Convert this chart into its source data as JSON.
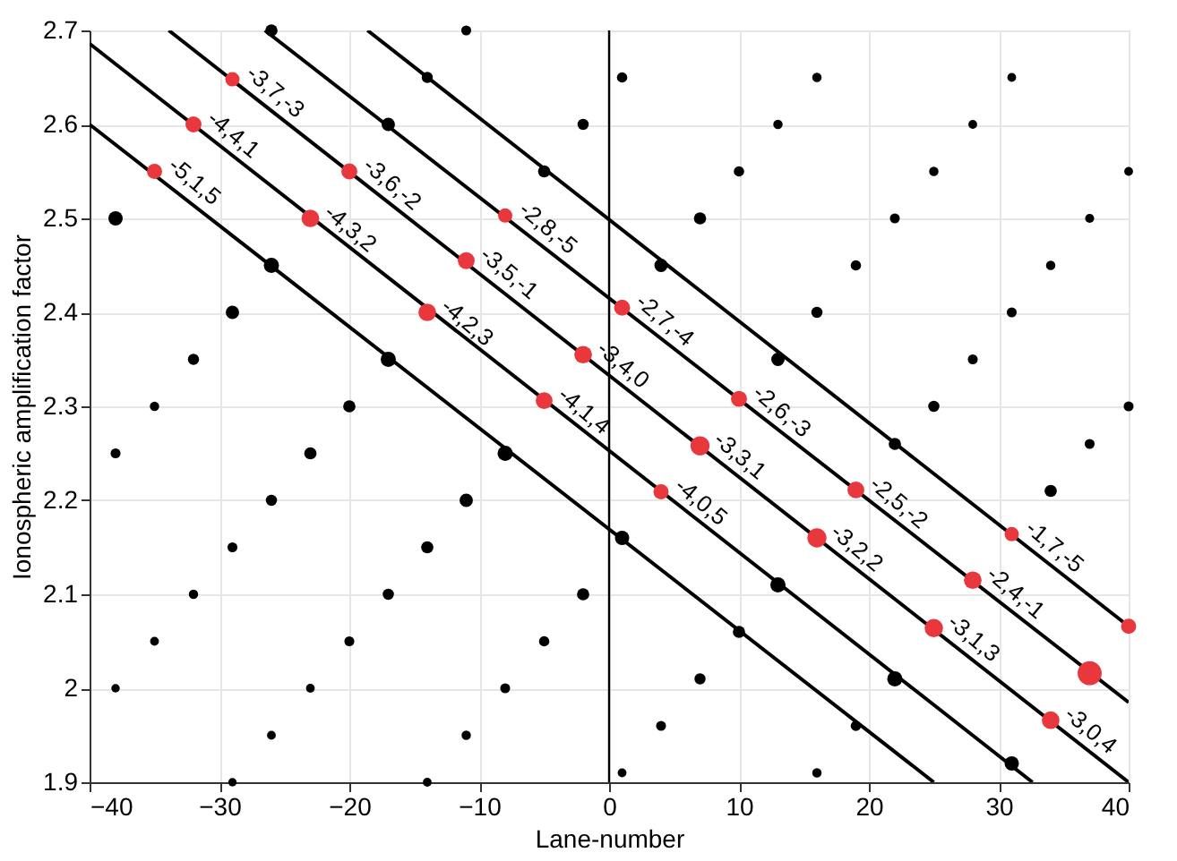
{
  "chart_data": {
    "type": "bubble",
    "xlabel": "Lane-number",
    "ylabel": "Ionospheric amplification factor",
    "xlim": [
      -40,
      40
    ],
    "xticks": [
      -40,
      -30,
      -20,
      -10,
      0,
      10,
      20,
      30,
      40
    ],
    "ylim": [
      1.9,
      2.7
    ],
    "yticks": [
      1.9,
      2,
      2.1,
      2.2,
      2.3,
      2.4,
      2.5,
      2.6,
      2.7
    ],
    "grid": true,
    "marker": "circle",
    "ref_lines": [
      {
        "axis": "x",
        "value": 0,
        "color": "#000000"
      }
    ],
    "series": [
      {
        "type": "line",
        "marker": "none",
        "color": "#000000",
        "x": [
          -18.6,
          40
        ],
        "values": [
          2.7,
          2.066
        ]
      },
      {
        "type": "line",
        "marker": "none",
        "color": "#000000",
        "x": [
          -26.5,
          40
        ],
        "values": [
          2.7,
          1.985
        ]
      },
      {
        "type": "line",
        "marker": "none",
        "color": "#000000",
        "x": [
          -33.9,
          40
        ],
        "values": [
          2.7,
          1.9
        ]
      },
      {
        "type": "line",
        "marker": "none",
        "color": "#000000",
        "x": [
          -40,
          32.6
        ],
        "values": [
          2.686,
          1.9
        ]
      },
      {
        "type": "line",
        "marker": "none",
        "color": "#000000",
        "x": [
          -40,
          25
        ],
        "values": [
          2.6,
          1.9
        ]
      },
      {
        "color": "#000000",
        "x": [
          -26,
          -11,
          -14,
          -17,
          -2,
          -5,
          -38,
          -26,
          -29,
          -17,
          -32,
          -35,
          -20,
          1,
          16,
          31,
          13,
          28,
          10,
          25,
          40,
          7,
          22,
          37,
          4,
          19,
          34,
          16,
          31,
          13,
          28,
          25,
          40,
          -38,
          -23,
          -26,
          -29,
          -32,
          -35,
          -38,
          -23,
          -26,
          -29,
          -8,
          -11,
          -14,
          -17,
          -20,
          -2,
          -5,
          -8,
          -11,
          -14,
          22,
          37,
          34,
          1,
          13,
          10,
          7,
          22,
          4,
          19,
          1,
          16,
          31
        ],
        "values": [
          2.7,
          2.7,
          2.65,
          2.6,
          2.6,
          2.55,
          2.5,
          2.45,
          2.4,
          2.35,
          2.35,
          2.3,
          2.3,
          2.65,
          2.65,
          2.65,
          2.6,
          2.6,
          2.55,
          2.55,
          2.55,
          2.5,
          2.5,
          2.5,
          2.45,
          2.45,
          2.45,
          2.4,
          2.4,
          2.35,
          2.35,
          2.3,
          2.3,
          2.25,
          2.25,
          2.2,
          2.15,
          2.1,
          2.05,
          2.0,
          2.0,
          1.95,
          1.9,
          2.25,
          2.2,
          2.15,
          2.1,
          2.05,
          2.1,
          2.05,
          2.0,
          1.95,
          1.9,
          2.26,
          2.26,
          2.21,
          2.16,
          2.11,
          2.06,
          2.01,
          2.01,
          1.96,
          1.96,
          1.91,
          1.91,
          1.92
        ],
        "sizes": [
          0.2,
          0.1,
          0.15,
          0.25,
          0.15,
          0.2,
          0.3,
          0.35,
          0.25,
          0.35,
          0.15,
          0.08,
          0.2,
          0.12,
          0.08,
          0.06,
          0.08,
          0.06,
          0.12,
          0.08,
          0.06,
          0.2,
          0.1,
          0.07,
          0.25,
          0.12,
          0.08,
          0.15,
          0.1,
          0.25,
          0.1,
          0.15,
          0.1,
          0.1,
          0.2,
          0.15,
          0.1,
          0.08,
          0.06,
          0.05,
          0.06,
          0.06,
          0.05,
          0.35,
          0.25,
          0.2,
          0.15,
          0.1,
          0.2,
          0.12,
          0.1,
          0.08,
          0.06,
          0.2,
          0.1,
          0.2,
          0.3,
          0.35,
          0.2,
          0.15,
          0.35,
          0.1,
          0.12,
          0.06,
          0.08,
          0.3
        ]
      },
      {
        "color": "#e8383d",
        "x": [
          -35,
          -32,
          -29,
          -23,
          -20,
          -8,
          -11,
          -14,
          -2,
          -5,
          1,
          10,
          7,
          4,
          19,
          16,
          31,
          28,
          25,
          40,
          37,
          34
        ],
        "values": [
          2.55,
          2.6,
          2.648,
          2.5,
          2.55,
          2.503,
          2.455,
          2.4,
          2.355,
          2.306,
          2.405,
          2.308,
          2.258,
          2.209,
          2.211,
          2.16,
          2.164,
          2.115,
          2.064,
          2.066,
          2.016,
          1.966
        ],
        "sizes": [
          0.35,
          0.4,
          0.3,
          0.5,
          0.4,
          0.3,
          0.45,
          0.5,
          0.5,
          0.45,
          0.4,
          0.4,
          0.6,
          0.35,
          0.45,
          0.6,
          0.3,
          0.5,
          0.55,
          0.35,
          1,
          0.5
        ],
        "value_labels": [
          "-5,1,5",
          "-4,4,1",
          "-3,7,-3",
          "-4,3,2",
          "-3,6,-2",
          "-2,8,-5",
          "-3,5,-1",
          "-4,2,3",
          "-3,4,0",
          "-4,1,4",
          "-2,7,-4",
          "-2,6,-3",
          "-3,3,1",
          "-4,0,5",
          "-2,5,-2",
          "-3,2,2",
          "-1,7,-5",
          "-2,4,-1",
          "-3,1,3",
          null,
          null,
          "-3,0,4"
        ]
      }
    ]
  }
}
